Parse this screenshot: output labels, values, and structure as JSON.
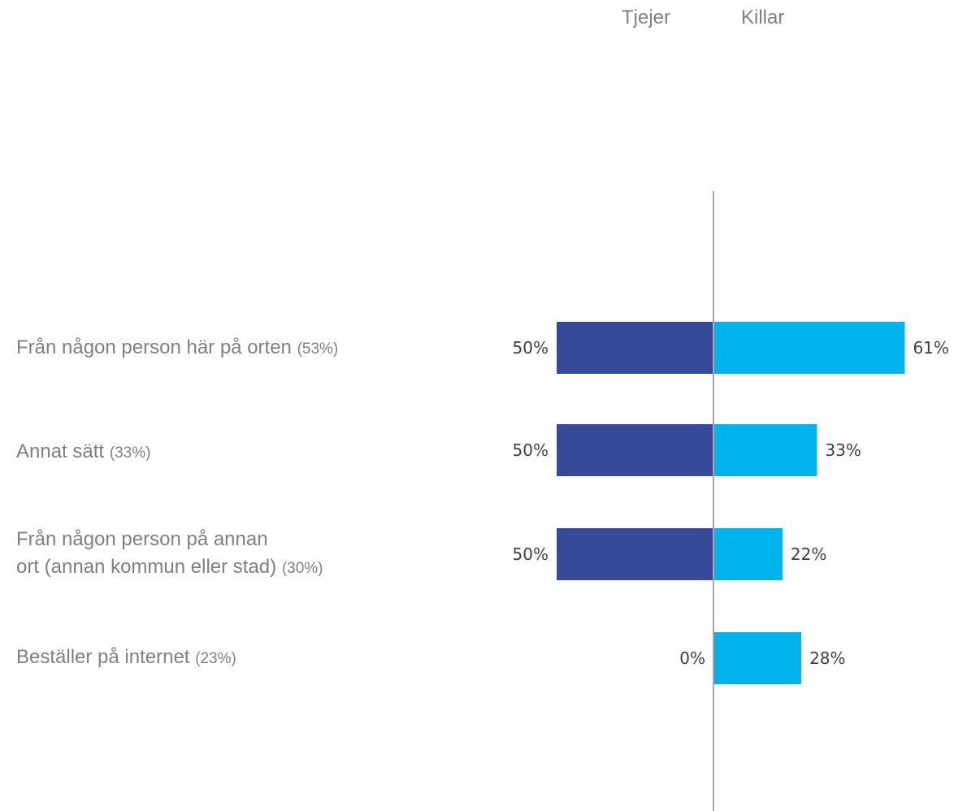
{
  "chart_data": {
    "type": "bar",
    "orientation": "horizontal-diverging",
    "legend_placement": "top",
    "categories": [
      {
        "label": "Från någon person här på orten",
        "total": "(53%)"
      },
      {
        "label": "Annat sätt",
        "total": "(33%)"
      },
      {
        "label": "Från någon person på annan ort (annan kommun eller stad)",
        "total": "(30%)"
      },
      {
        "label": "Beställer på internet",
        "total": "(23%)"
      }
    ],
    "series": [
      {
        "name": "Tjejer",
        "color": "#354b9a",
        "values": [
          50,
          50,
          50,
          0
        ],
        "labels": [
          "50%",
          "50%",
          "50%",
          "0%"
        ]
      },
      {
        "name": "Killar",
        "color": "#00b3ec",
        "values": [
          61,
          33,
          22,
          28
        ],
        "labels": [
          "61%",
          "33%",
          "22%",
          "28%"
        ]
      }
    ],
    "axis_color": "#a6a6a6"
  },
  "category_lines": [
    [
      "Från någon person här på orten"
    ],
    [
      "Annat sätt"
    ],
    [
      "Från någon person på annan",
      "ort (annan kommun eller stad)"
    ],
    [
      "Beställer på internet"
    ]
  ]
}
